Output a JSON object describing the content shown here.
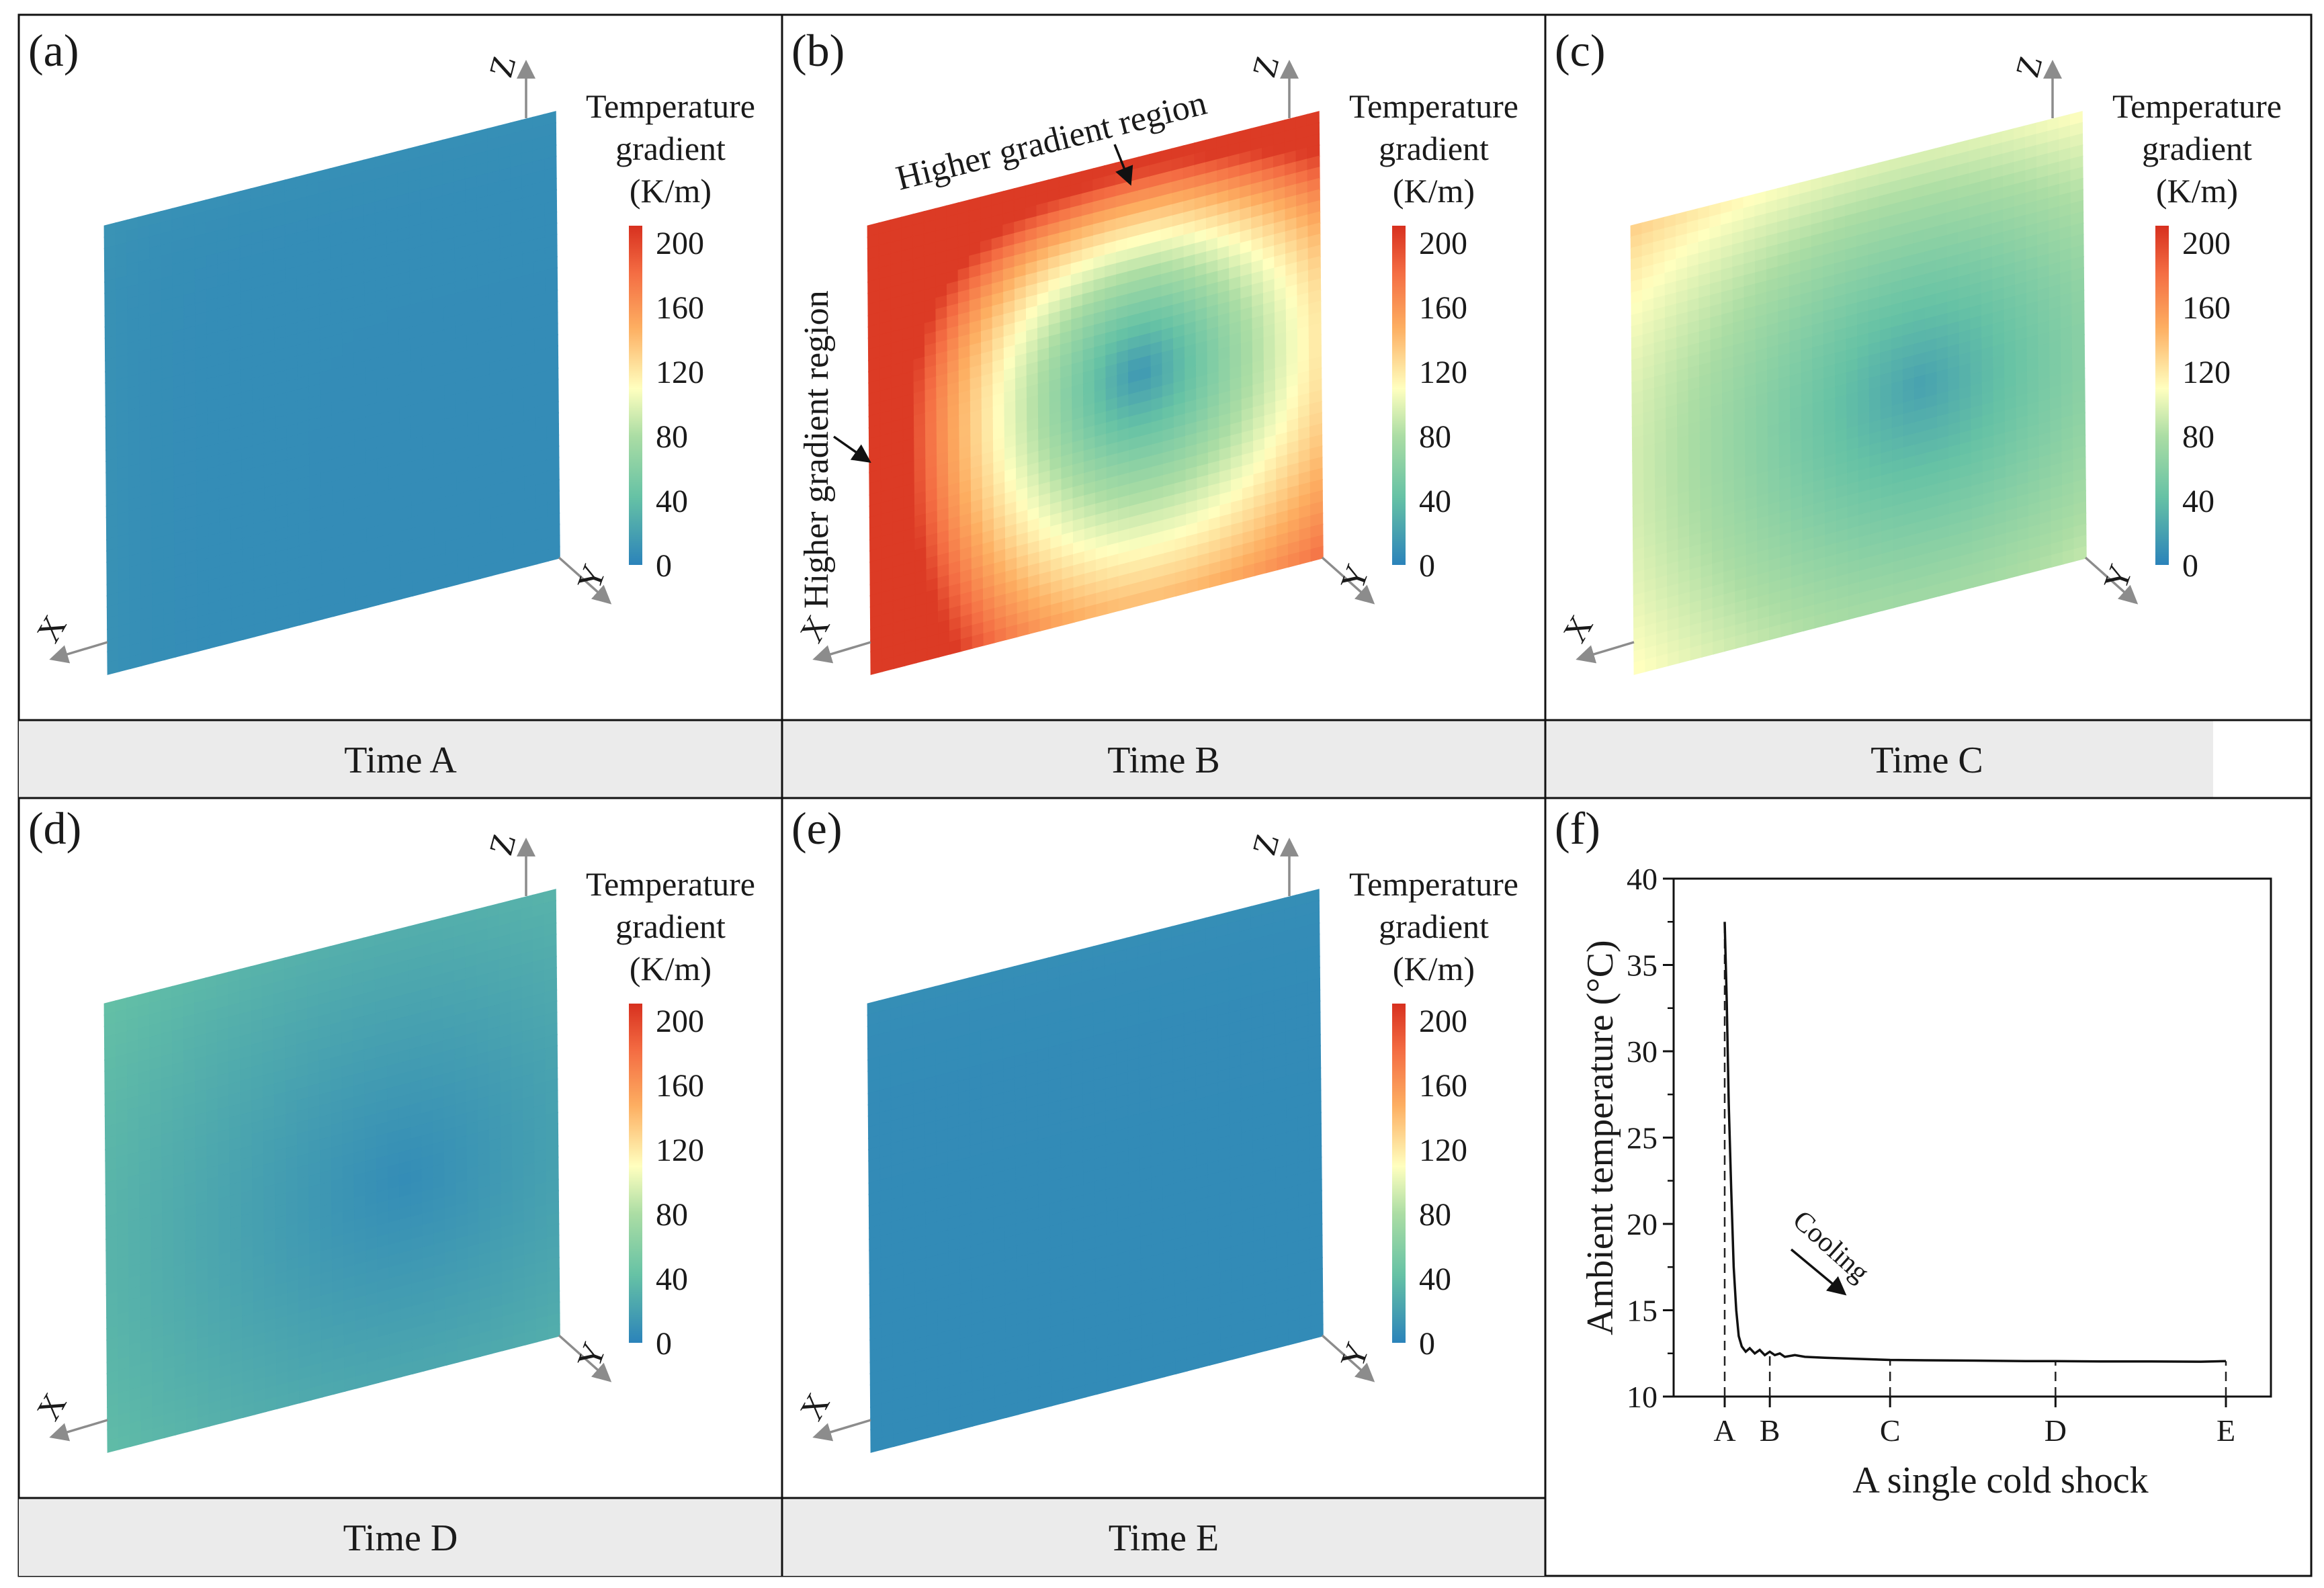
{
  "figure": {
    "colorbar": {
      "title_lines": [
        "Temperature",
        "gradient",
        "(K/m)"
      ],
      "ticks": [
        200,
        160,
        120,
        80,
        40,
        0
      ],
      "range": [
        0,
        200
      ],
      "stops": [
        "#2b83ba",
        "#66c2a5",
        "#abdda4",
        "#ffffbf",
        "#fdae61",
        "#f46d43",
        "#d7301f"
      ]
    },
    "axis_letters": {
      "x": "X",
      "y": "Y",
      "z": "Z"
    },
    "panels": [
      {
        "tag": "(a)",
        "caption": "Time A",
        "field": "A"
      },
      {
        "tag": "(b)",
        "caption": "Time B",
        "field": "B",
        "annotations": [
          "Higher gradient region",
          "Higher gradient region"
        ]
      },
      {
        "tag": "(c)",
        "caption": "Time C",
        "field": "C"
      },
      {
        "tag": "(d)",
        "caption": "Time D",
        "field": "D"
      },
      {
        "tag": "(e)",
        "caption": "Time E",
        "field": "E"
      }
    ],
    "plot_panel": {
      "tag": "(f)"
    }
  },
  "chart_data": {
    "type": "line",
    "title": "",
    "xlabel": "A single cold shock",
    "ylabel": "Ambient temperature (°C)",
    "ylim": [
      10,
      40
    ],
    "yticks": [
      10,
      15,
      20,
      25,
      30,
      35,
      40
    ],
    "xlim": [
      0,
      100
    ],
    "x_markers": [
      {
        "label": "A",
        "x": 0
      },
      {
        "label": "B",
        "x": 9
      },
      {
        "label": "C",
        "x": 33
      },
      {
        "label": "D",
        "x": 66
      },
      {
        "label": "E",
        "x": 100
      }
    ],
    "annotation": "Cooling",
    "series": [
      {
        "name": "Ambient temperature",
        "x": [
          0,
          0.4,
          0.8,
          1.3,
          1.8,
          2.3,
          2.8,
          3.4,
          4.2,
          5,
          6,
          7,
          8,
          9,
          10,
          11,
          12,
          14,
          16,
          20,
          25,
          30,
          33,
          40,
          50,
          60,
          66,
          75,
          85,
          95,
          100
        ],
        "y": [
          37.5,
          33,
          27,
          22,
          17.5,
          15,
          13.5,
          12.9,
          12.6,
          12.8,
          12.5,
          12.7,
          12.4,
          12.6,
          12.4,
          12.5,
          12.3,
          12.4,
          12.3,
          12.25,
          12.2,
          12.15,
          12.12,
          12.1,
          12.08,
          12.05,
          12.05,
          12.03,
          12.03,
          12.02,
          12.05
        ]
      }
    ]
  }
}
